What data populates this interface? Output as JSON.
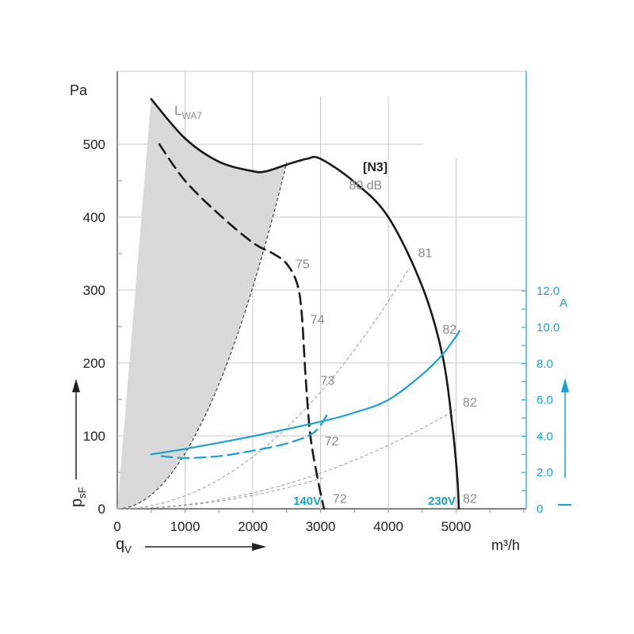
{
  "chart_data": {
    "type": "line",
    "x_unit": "m³/h",
    "y_unit": "Pa",
    "y_symbol": "p",
    "y_symbol_sub": "sF",
    "x_symbol": "q",
    "x_symbol_sub": "V",
    "right_unit": "A",
    "xlim": [
      0,
      6000
    ],
    "ylim": [
      0,
      550
    ],
    "right_ylim": [
      0,
      12
    ],
    "x_ticks": [
      "0",
      "1000",
      "2000",
      "3000",
      "4000",
      "5000"
    ],
    "y_ticks": [
      "0",
      "100",
      "200",
      "300",
      "400",
      "500"
    ],
    "right_ticks": [
      "0",
      "2.0",
      "4.0",
      "6.0",
      "8.0",
      "10.0",
      "12.0"
    ],
    "grid": true,
    "region_label_main": "L",
    "region_label_sub": "WA7",
    "model_label": "[N3]",
    "voltage_labels": [
      "140V",
      "230V"
    ],
    "series": [
      {
        "name": "230V",
        "kind": "pressure",
        "style": "solid",
        "color": "#1a1a1a",
        "points": [
          [
            500,
            562
          ],
          [
            1000,
            508
          ],
          [
            1500,
            476
          ],
          [
            2000,
            463
          ],
          [
            2200,
            463
          ],
          [
            2500,
            472
          ],
          [
            2800,
            480
          ],
          [
            3000,
            480
          ],
          [
            3500,
            448
          ],
          [
            4000,
            400
          ],
          [
            4500,
            305
          ],
          [
            4800,
            210
          ],
          [
            4950,
            110
          ],
          [
            5020,
            40
          ],
          [
            5040,
            0
          ]
        ]
      },
      {
        "name": "140V",
        "kind": "pressure",
        "style": "dashed",
        "color": "#1a1a1a",
        "points": [
          [
            620,
            500
          ],
          [
            1000,
            450
          ],
          [
            1500,
            404
          ],
          [
            2000,
            365
          ],
          [
            2300,
            350
          ],
          [
            2500,
            336
          ],
          [
            2650,
            310
          ],
          [
            2720,
            270
          ],
          [
            2780,
            180
          ],
          [
            2850,
            100
          ],
          [
            2960,
            40
          ],
          [
            3050,
            0
          ]
        ]
      },
      {
        "name": "230V",
        "kind": "current",
        "style": "solid",
        "color": "#1aa3cc",
        "points": [
          [
            500,
            3.0
          ],
          [
            1000,
            3.3
          ],
          [
            2000,
            4.0
          ],
          [
            3000,
            4.8
          ],
          [
            3500,
            5.3
          ],
          [
            4000,
            6.0
          ],
          [
            4500,
            7.4
          ],
          [
            4800,
            8.5
          ],
          [
            5000,
            9.5
          ],
          [
            5050,
            9.8
          ]
        ]
      },
      {
        "name": "140V",
        "kind": "current",
        "style": "dashed",
        "color": "#1aa3cc",
        "points": [
          [
            650,
            2.9
          ],
          [
            1000,
            2.8
          ],
          [
            1500,
            2.9
          ],
          [
            2000,
            3.2
          ],
          [
            2500,
            3.6
          ],
          [
            2900,
            4.2
          ],
          [
            3100,
            5.2
          ]
        ]
      }
    ],
    "system_curves": [
      {
        "k": 1.78e-05,
        "x_end": 4310,
        "label": "81"
      },
      {
        "k": 5.45e-06,
        "x_end": 5000,
        "label": "82"
      },
      {
        "k": 4.6e-06,
        "x_end": 3050,
        "label": "72"
      }
    ],
    "region_boundary": {
      "k": 7.6e-05,
      "x_end": 2500
    },
    "annotations": [
      {
        "text": "80 dB",
        "x": 3420,
        "y": 438
      },
      {
        "text": "81",
        "x": 4440,
        "y": 345
      },
      {
        "text": "82",
        "x": 4800,
        "y": 240
      },
      {
        "text": "82",
        "x": 5100,
        "y": 140
      },
      {
        "text": "82",
        "x": 5100,
        "y": 8
      },
      {
        "text": "75",
        "x": 2630,
        "y": 330
      },
      {
        "text": "74",
        "x": 2850,
        "y": 254
      },
      {
        "text": "73",
        "x": 3000,
        "y": 170
      },
      {
        "text": "72",
        "x": 3060,
        "y": 87
      },
      {
        "text": "72",
        "x": 3180,
        "y": 8
      }
    ]
  }
}
